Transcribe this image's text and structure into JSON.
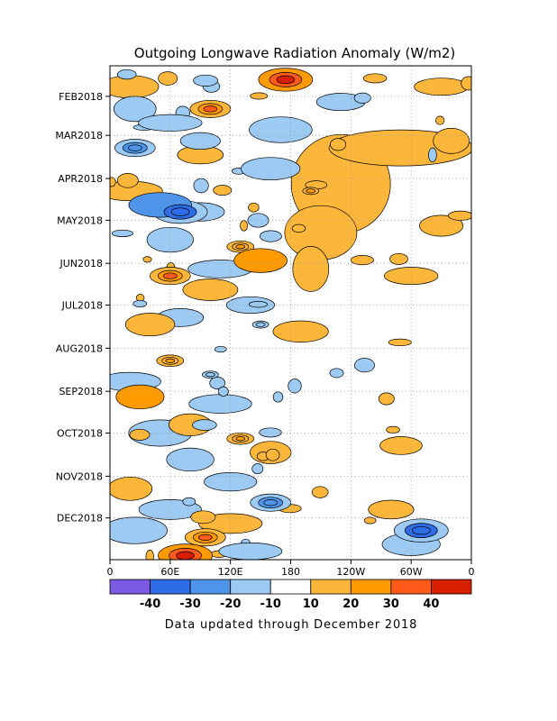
{
  "chart_data": {
    "type": "heatmap",
    "title": "Outgoing Longwave Radiation Anomaly (W/m2)",
    "xlabel": "",
    "ylabel": "",
    "x_ticks": [
      "0",
      "60E",
      "120E",
      "180",
      "120W",
      "60W",
      "0"
    ],
    "x_values_deg_east": [
      0,
      60,
      120,
      180,
      240,
      300,
      360
    ],
    "y_ticks": [
      "FEB2018",
      "MAR2018",
      "APR2018",
      "MAY2018",
      "JUN2018",
      "JUL2018",
      "AUG2018",
      "SEP2018",
      "OCT2018",
      "NOV2018",
      "DEC2018"
    ],
    "y_range": [
      "2018-01-10",
      "2018-12-31"
    ],
    "xlim": [
      0,
      360
    ],
    "grid": true,
    "colorbar": {
      "levels": [
        -40,
        -30,
        -20,
        -10,
        10,
        20,
        30,
        40
      ],
      "tick_labels": [
        "-40",
        "-30",
        "-20",
        "-10",
        "10",
        "20",
        "30",
        "40"
      ],
      "colors": [
        "#7a5ae0",
        "#2e6be6",
        "#4e95ea",
        "#9ccaf2",
        "#ffffff",
        "#fcb73a",
        "#ff9a00",
        "#ff5a1a",
        "#d81e00"
      ]
    },
    "anomaly_regions": [
      {
        "lon_center": 175,
        "date": "2018-01-20",
        "value": 40
      },
      {
        "lon_center": 100,
        "date": "2018-02-10",
        "value": 30
      },
      {
        "lon_center": 25,
        "date": "2018-03-10",
        "value": -30
      },
      {
        "lon_center": 200,
        "date": "2018-04-10",
        "value": 20
      },
      {
        "lon_center": 70,
        "date": "2018-04-25",
        "value": -40
      },
      {
        "lon_center": 130,
        "date": "2018-05-20",
        "value": 20
      },
      {
        "lon_center": 60,
        "date": "2018-06-10",
        "value": 30
      },
      {
        "lon_center": 150,
        "date": "2018-07-15",
        "value": -20
      },
      {
        "lon_center": 60,
        "date": "2018-08-10",
        "value": 20
      },
      {
        "lon_center": 100,
        "date": "2018-08-20",
        "value": -20
      },
      {
        "lon_center": 130,
        "date": "2018-10-05",
        "value": 20
      },
      {
        "lon_center": 160,
        "date": "2018-11-20",
        "value": -30
      },
      {
        "lon_center": 95,
        "date": "2018-12-15",
        "value": 30
      },
      {
        "lon_center": 310,
        "date": "2018-12-10",
        "value": -40
      },
      {
        "lon_center": 75,
        "date": "2018-12-28",
        "value": 40
      }
    ]
  },
  "footer": "Data updated through December 2018"
}
